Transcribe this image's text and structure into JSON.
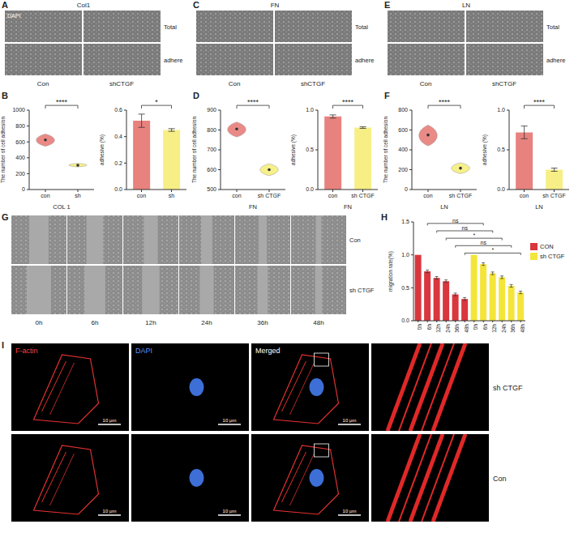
{
  "chart_data": [
    {
      "panel": "B",
      "type": "violin",
      "y_label": "The number of cell adhesion",
      "x_label": "COL 1",
      "categories": [
        "con",
        "sh"
      ],
      "values": [
        625,
        305
      ],
      "ranges": [
        [
          545,
          700
        ],
        [
          285,
          330
        ]
      ],
      "colors": [
        "#ea8a86",
        "#f6f08a"
      ],
      "ylim": [
        0,
        1000
      ],
      "yticks": [
        0,
        200,
        400,
        600,
        800,
        1000
      ],
      "annotations": [
        {
          "from": "con",
          "to": "sh",
          "label": "****"
        }
      ]
    },
    {
      "panel": "B",
      "type": "bar",
      "y_label": "adhesive (%)",
      "categories": [
        "con",
        "sh"
      ],
      "values": [
        0.52,
        0.45
      ],
      "errors": [
        0.05,
        0.01
      ],
      "colors": [
        "#e8827e",
        "#f7ef86"
      ],
      "ylim": [
        0,
        0.6
      ],
      "yticks": [
        {
          "value": 0,
          "label": "0.0"
        },
        {
          "value": 0.2,
          "label": "0.2"
        },
        {
          "value": 0.4,
          "label": "0.4"
        },
        {
          "value": 0.6,
          "label": "0.6"
        }
      ],
      "annotations": [
        {
          "from": "con",
          "to": "sh",
          "label": "*"
        }
      ]
    },
    {
      "panel": "D",
      "type": "violin",
      "y_label": "The number of cell adhesion",
      "x_label": "FN",
      "categories": [
        "con",
        "sh CTGF"
      ],
      "values": [
        805,
        600
      ],
      "ranges": [
        [
          765,
          840
        ],
        [
          570,
          630
        ]
      ],
      "colors": [
        "#ea8a86",
        "#f6f08a"
      ],
      "ylim": [
        500,
        900
      ],
      "yticks": [
        500,
        600,
        700,
        800,
        900
      ],
      "annotations": [
        {
          "from": "con",
          "to": "sh CTGF",
          "label": "****"
        }
      ]
    },
    {
      "panel": "D",
      "type": "bar",
      "y_label": "adhesive (%)",
      "x_label": "FN",
      "categories": [
        "con",
        "sh CTGF"
      ],
      "values": [
        0.92,
        0.78
      ],
      "errors": [
        0.02,
        0.01
      ],
      "colors": [
        "#e8827e",
        "#f7ef86"
      ],
      "ylim": [
        0,
        1.0
      ],
      "yticks": [
        {
          "value": 0,
          "label": "0.0"
        },
        {
          "value": 0.5,
          "label": "0.5"
        },
        {
          "value": 1.0,
          "label": "1.0"
        }
      ],
      "annotations": [
        {
          "from": "con",
          "to": "sh CTGF",
          "label": "****"
        }
      ]
    },
    {
      "panel": "F",
      "type": "violin",
      "y_label": "The number of cell adhesion",
      "x_label": "LN",
      "categories": [
        "con",
        "sh CTGF"
      ],
      "values": [
        550,
        215
      ],
      "ranges": [
        [
          440,
          650
        ],
        [
          160,
          270
        ]
      ],
      "colors": [
        "#ea8a86",
        "#f6f08a"
      ],
      "ylim": [
        0,
        800
      ],
      "yticks": [
        0,
        200,
        400,
        600,
        800
      ],
      "annotations": [
        {
          "from": "con",
          "to": "sh CTGF",
          "label": "****"
        }
      ]
    },
    {
      "panel": "F",
      "type": "bar",
      "y_label": "adhesive (%)",
      "x_label": "LN",
      "categories": [
        "con",
        "sh CTGF"
      ],
      "values": [
        0.72,
        0.25
      ],
      "errors": [
        0.08,
        0.02
      ],
      "colors": [
        "#e8827e",
        "#f7ef86"
      ],
      "ylim": [
        0,
        1.0
      ],
      "yticks": [
        {
          "value": 0,
          "label": "0.0"
        },
        {
          "value": 0.5,
          "label": "0.5"
        },
        {
          "value": 1.0,
          "label": "1.0"
        }
      ],
      "annotations": [
        {
          "from": "con",
          "to": "sh CTGF",
          "label": "****"
        }
      ]
    },
    {
      "panel": "H",
      "type": "bar",
      "y_label": "migration rate(%)",
      "categories": [
        "0h",
        "6h",
        "12h",
        "24h",
        "36h",
        "48h"
      ],
      "series": [
        {
          "name": "CON",
          "color": "#d9363e",
          "values": [
            1.0,
            0.75,
            0.65,
            0.6,
            0.4,
            0.33
          ],
          "errors": [
            0,
            0.02,
            0.02,
            0.02,
            0.02,
            0.02
          ]
        },
        {
          "name": "sh CTGF",
          "color": "#f4e53a",
          "values": [
            1.0,
            0.86,
            0.72,
            0.66,
            0.53,
            0.43
          ],
          "errors": [
            0,
            0.02,
            0.02,
            0.02,
            0.02,
            0.02
          ]
        }
      ],
      "ylim": [
        0,
        1.5
      ],
      "yticks": [
        {
          "value": 0,
          "label": "0.0"
        },
        {
          "value": 0.5,
          "label": "0.5"
        },
        {
          "value": 1.0,
          "label": "1.0"
        },
        {
          "value": 1.5,
          "label": "1.5"
        }
      ],
      "legend": "right",
      "annotations": [
        {
          "group": "6h",
          "label": "ns"
        },
        {
          "group": "12h",
          "label": "ns"
        },
        {
          "group": "24h",
          "label": "*"
        },
        {
          "group": "36h",
          "label": "ns"
        },
        {
          "group": "48h",
          "label": "*"
        }
      ]
    }
  ],
  "image_panels": {
    "A": {
      "title": "Col1",
      "stain": "DAPI",
      "rows": [
        "Total",
        "adhere"
      ],
      "columns": [
        "Con",
        "shCTGF"
      ]
    },
    "C": {
      "title": "FN",
      "rows": [
        "Total",
        "adhere"
      ],
      "columns": [
        "Con",
        "shCTGF"
      ]
    },
    "E": {
      "title": "LN",
      "rows": [
        "Total",
        "adhere"
      ],
      "columns": [
        "Con",
        "shCTGF"
      ]
    },
    "G": {
      "rows": [
        "Con",
        "sh CTGF"
      ],
      "columns": [
        "0h",
        "6h",
        "12h",
        "24h",
        "36h",
        "48h"
      ]
    },
    "I": {
      "columns": [
        "F-actin",
        "DAPI",
        "Merged"
      ],
      "rows": [
        "sh CTGF",
        "Con"
      ],
      "scale_bar": "10 μm"
    }
  }
}
